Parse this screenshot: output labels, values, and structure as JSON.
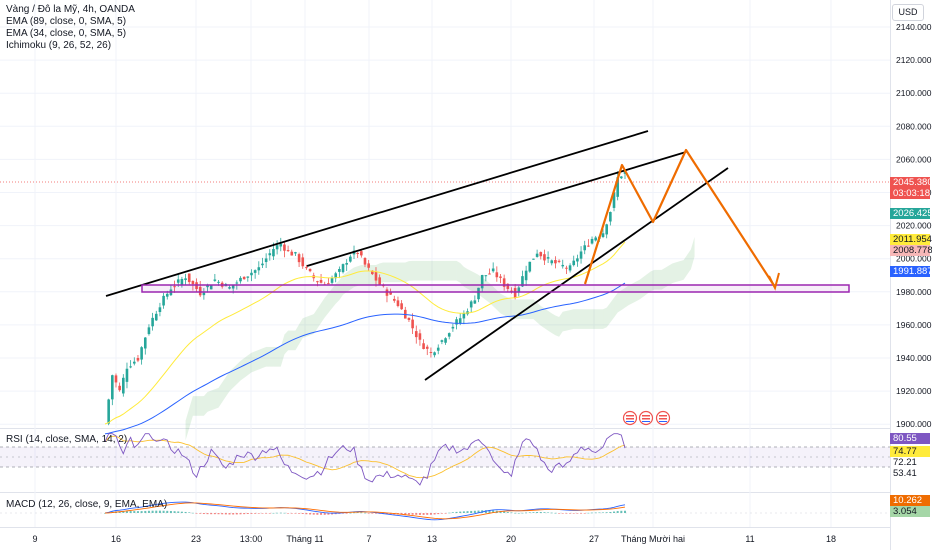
{
  "legend": {
    "title": "Vàng / Đô la Mỹ, 4h, OANDA",
    "ema89": "EMA (89, close, 0, SMA, 5)",
    "ema34": "EMA (34, close, 0, SMA, 5)",
    "ichimoku": "Ichimoku (9, 26, 52, 26)"
  },
  "currency_button": "USD",
  "price_axis": [
    "2140.000",
    "2120.000",
    "2100.000",
    "2080.000",
    "2060.000",
    "2040.000",
    "2020.000",
    "2000.000",
    "1980.000",
    "1960.000",
    "1940.000",
    "1920.000",
    "1900.000"
  ],
  "price_tags": {
    "last": "2045.380",
    "countdown": "03:03:18",
    "t1": "2026.425",
    "t2": "2011.954",
    "t3": "2008.778",
    "t4": "1991.887"
  },
  "rsi": {
    "label": "RSI (14, close, SMA, 14, 2)",
    "values": [
      "80.55",
      "74.77",
      "72.21",
      "53.41"
    ]
  },
  "macd": {
    "label": "MACD (12, 26, close, 9, EMA, EMA)",
    "values": [
      "10.262",
      "3.054"
    ]
  },
  "time_axis": [
    "9",
    "16",
    "23",
    "13:00",
    "Tháng 11",
    "7",
    "13",
    "20",
    "27",
    "Tháng Mười hai",
    "11",
    "18"
  ],
  "colors": {
    "up": "#26a69a",
    "down": "#ef5350",
    "projection": "#ef6c00",
    "support_zone": "#9c27b0",
    "ema89": "#2962ff",
    "ema34": "#ffeb3b",
    "rsi_line": "#7e57c2",
    "macd_line": "#2962ff",
    "signal_line": "#ff6d00"
  },
  "chart_data": {
    "type": "candlestick",
    "symbol": "Vàng / Đô la Mỹ, 4h, OANDA",
    "currency": "USD",
    "ylim": [
      1895,
      2150
    ],
    "price_path": [
      [
        0,
        1895
      ],
      [
        2,
        1925
      ],
      [
        4,
        1915
      ],
      [
        6,
        1930
      ],
      [
        9,
        1935
      ],
      [
        12,
        1955
      ],
      [
        15,
        1968
      ],
      [
        18,
        1978
      ],
      [
        22,
        1985
      ],
      [
        26,
        1975
      ],
      [
        30,
        1983
      ],
      [
        34,
        1978
      ],
      [
        38,
        1985
      ],
      [
        42,
        1990
      ],
      [
        46,
        2002
      ],
      [
        48,
        2005
      ],
      [
        50,
        2000
      ],
      [
        52,
        1998
      ],
      [
        54,
        1992
      ],
      [
        57,
        1984
      ],
      [
        60,
        1980
      ],
      [
        64,
        1988
      ],
      [
        67,
        1998
      ],
      [
        69,
        2000
      ],
      [
        71,
        1992
      ],
      [
        74,
        1983
      ],
      [
        77,
        1975
      ],
      [
        80,
        1968
      ],
      [
        83,
        1958
      ],
      [
        86,
        1945
      ],
      [
        89,
        1938
      ],
      [
        92,
        1946
      ],
      [
        95,
        1955
      ],
      [
        98,
        1962
      ],
      [
        101,
        1972
      ],
      [
        103,
        1985
      ],
      [
        106,
        1988
      ],
      [
        109,
        1980
      ],
      [
        112,
        1974
      ],
      [
        115,
        1990
      ],
      [
        118,
        2000
      ],
      [
        121,
        1995
      ],
      [
        124,
        1992
      ],
      [
        127,
        1990
      ],
      [
        130,
        2000
      ],
      [
        133,
        2008
      ],
      [
        136,
        2012
      ],
      [
        138,
        2025
      ],
      [
        140,
        2045
      ],
      [
        142,
        2049
      ]
    ]
  }
}
